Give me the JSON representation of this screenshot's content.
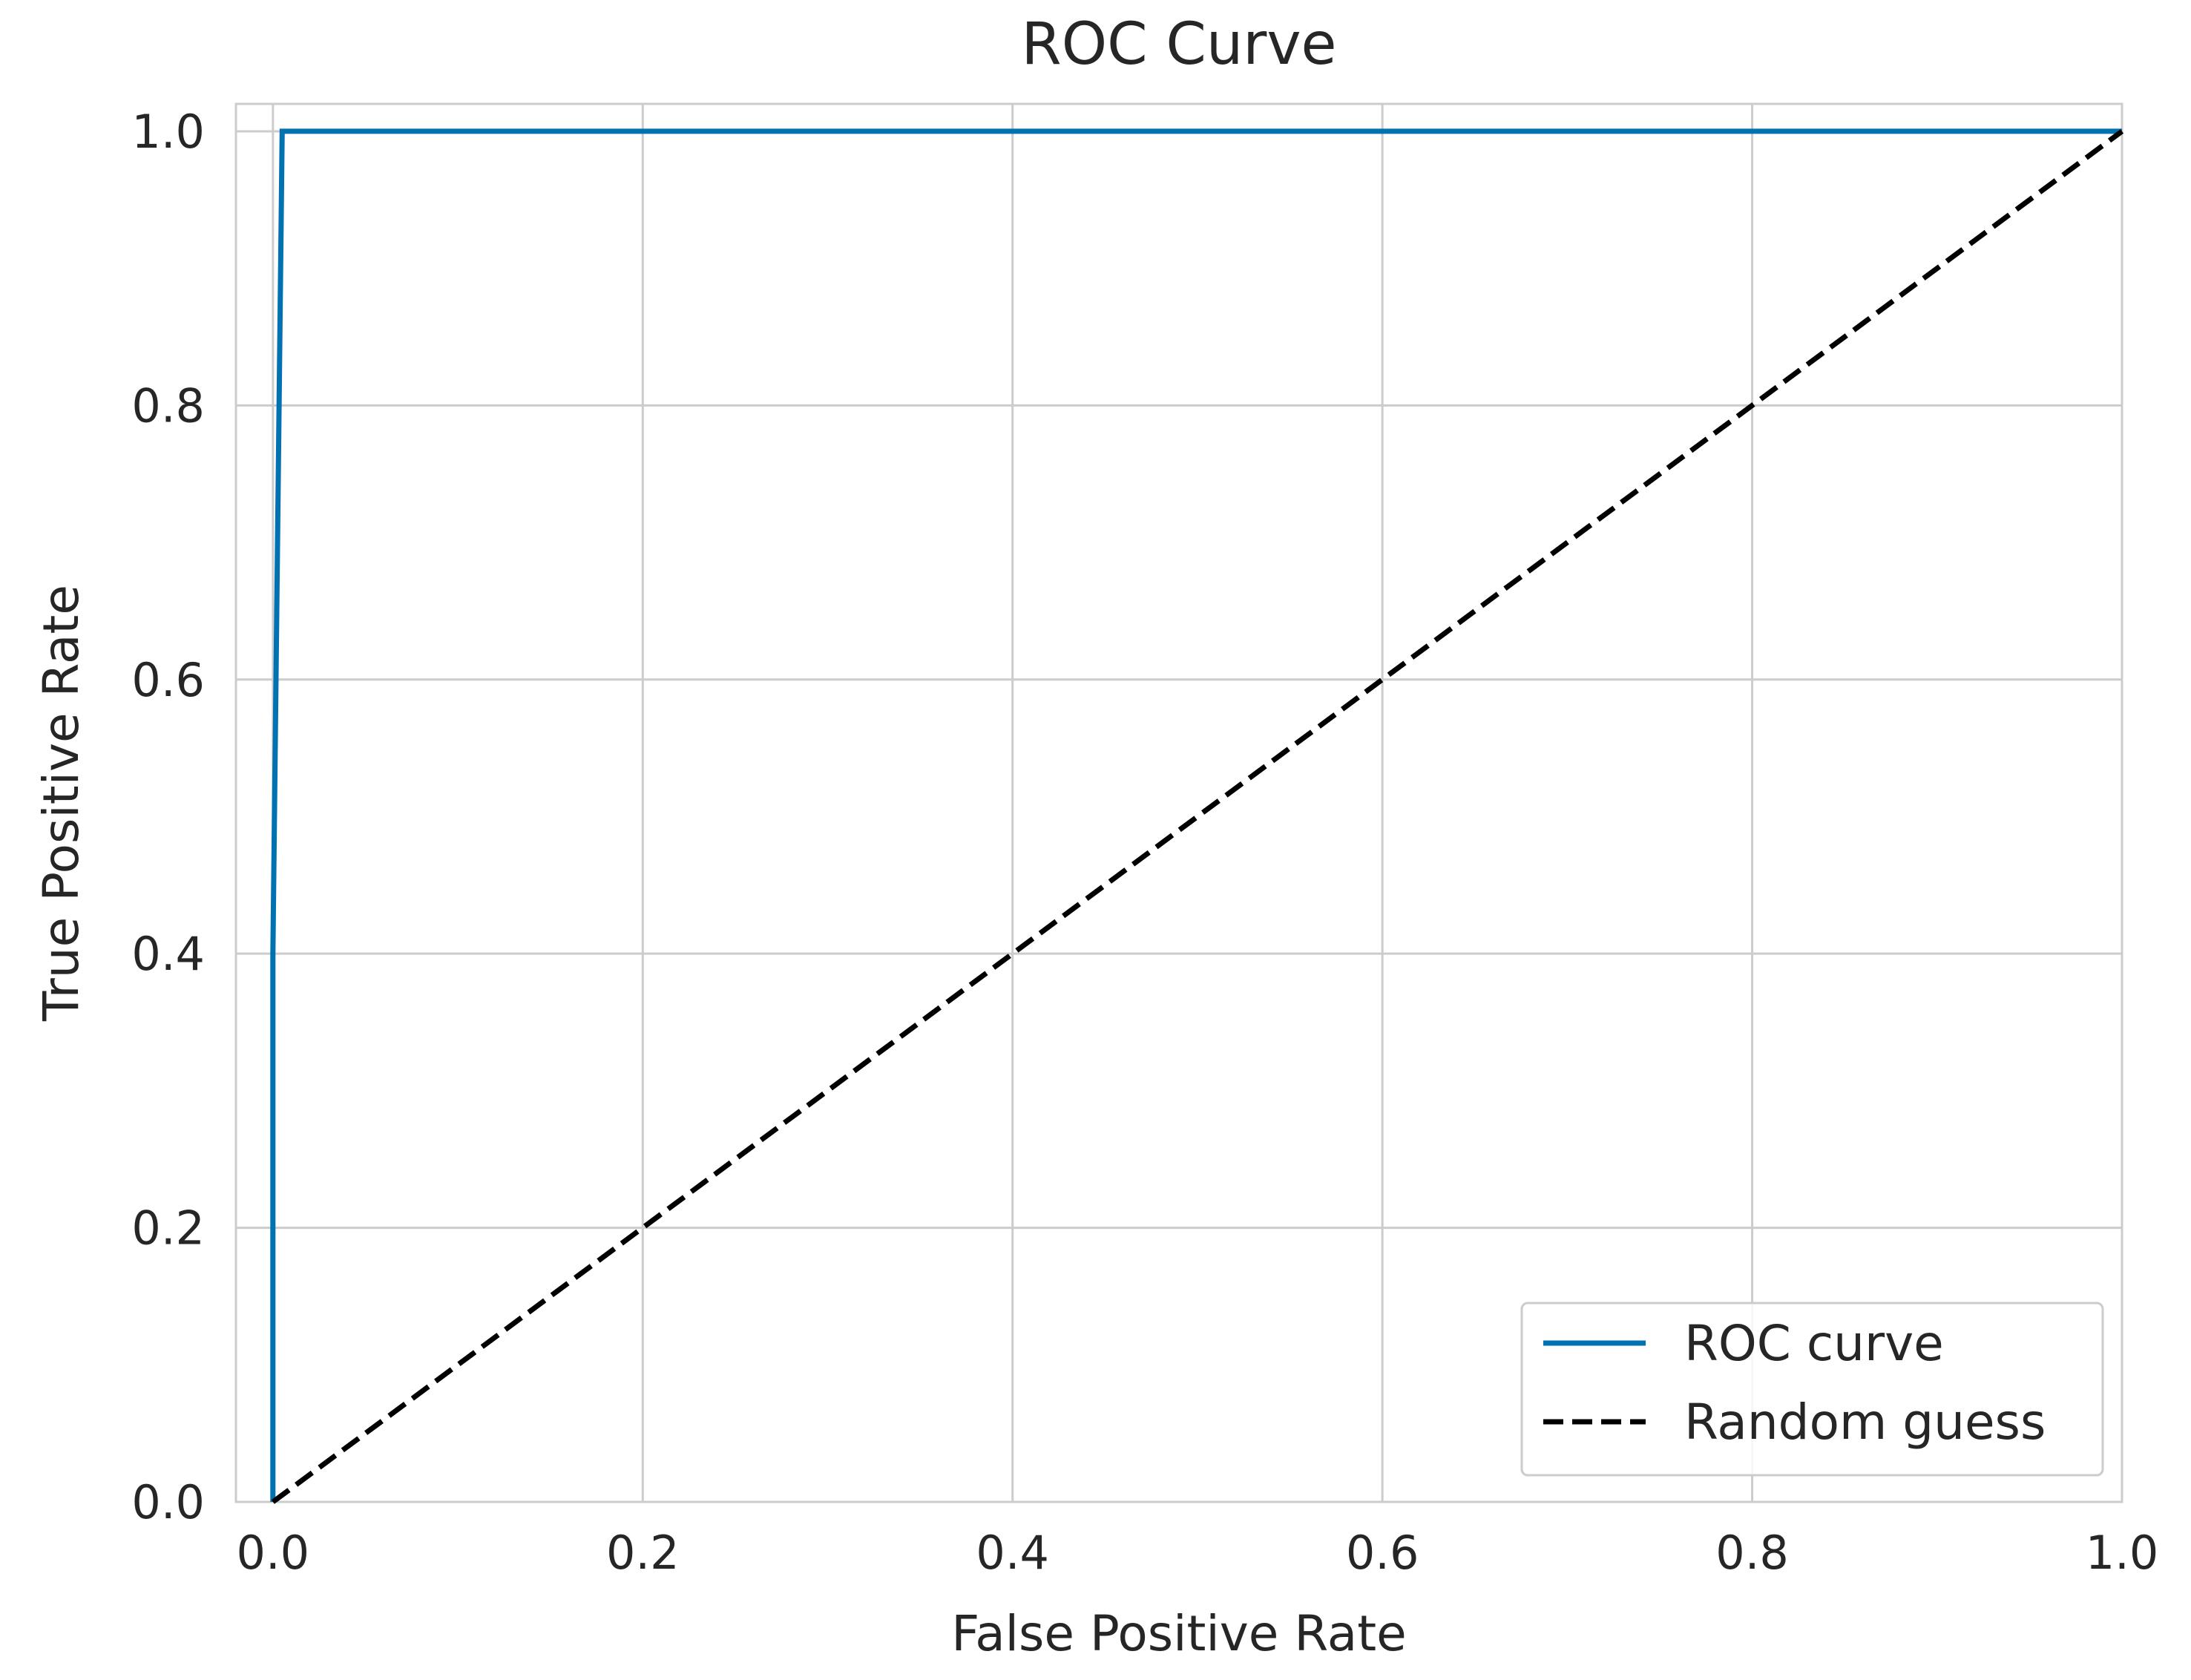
{
  "chart_data": {
    "type": "line",
    "title": "ROC Curve",
    "xlabel": "False Positive Rate",
    "ylabel": "True Positive Rate",
    "xlim": [
      -0.02,
      1.0
    ],
    "ylim": [
      0.0,
      1.02
    ],
    "xticks": [
      "0.0",
      "0.2",
      "0.4",
      "0.6",
      "0.8",
      "1.0"
    ],
    "yticks": [
      "0.0",
      "0.2",
      "0.4",
      "0.6",
      "0.8",
      "1.0"
    ],
    "grid": true,
    "legend_position": "lower-right",
    "series": [
      {
        "name": "ROC curve",
        "style": "solid",
        "color": "#0072b2",
        "x": [
          0.0,
          0.0,
          0.005,
          1.0
        ],
        "y": [
          0.0,
          0.4,
          1.0,
          1.0
        ]
      },
      {
        "name": "Random guess",
        "style": "dashed",
        "color": "#000000",
        "x": [
          0.0,
          1.0
        ],
        "y": [
          0.0,
          1.0
        ]
      }
    ]
  }
}
